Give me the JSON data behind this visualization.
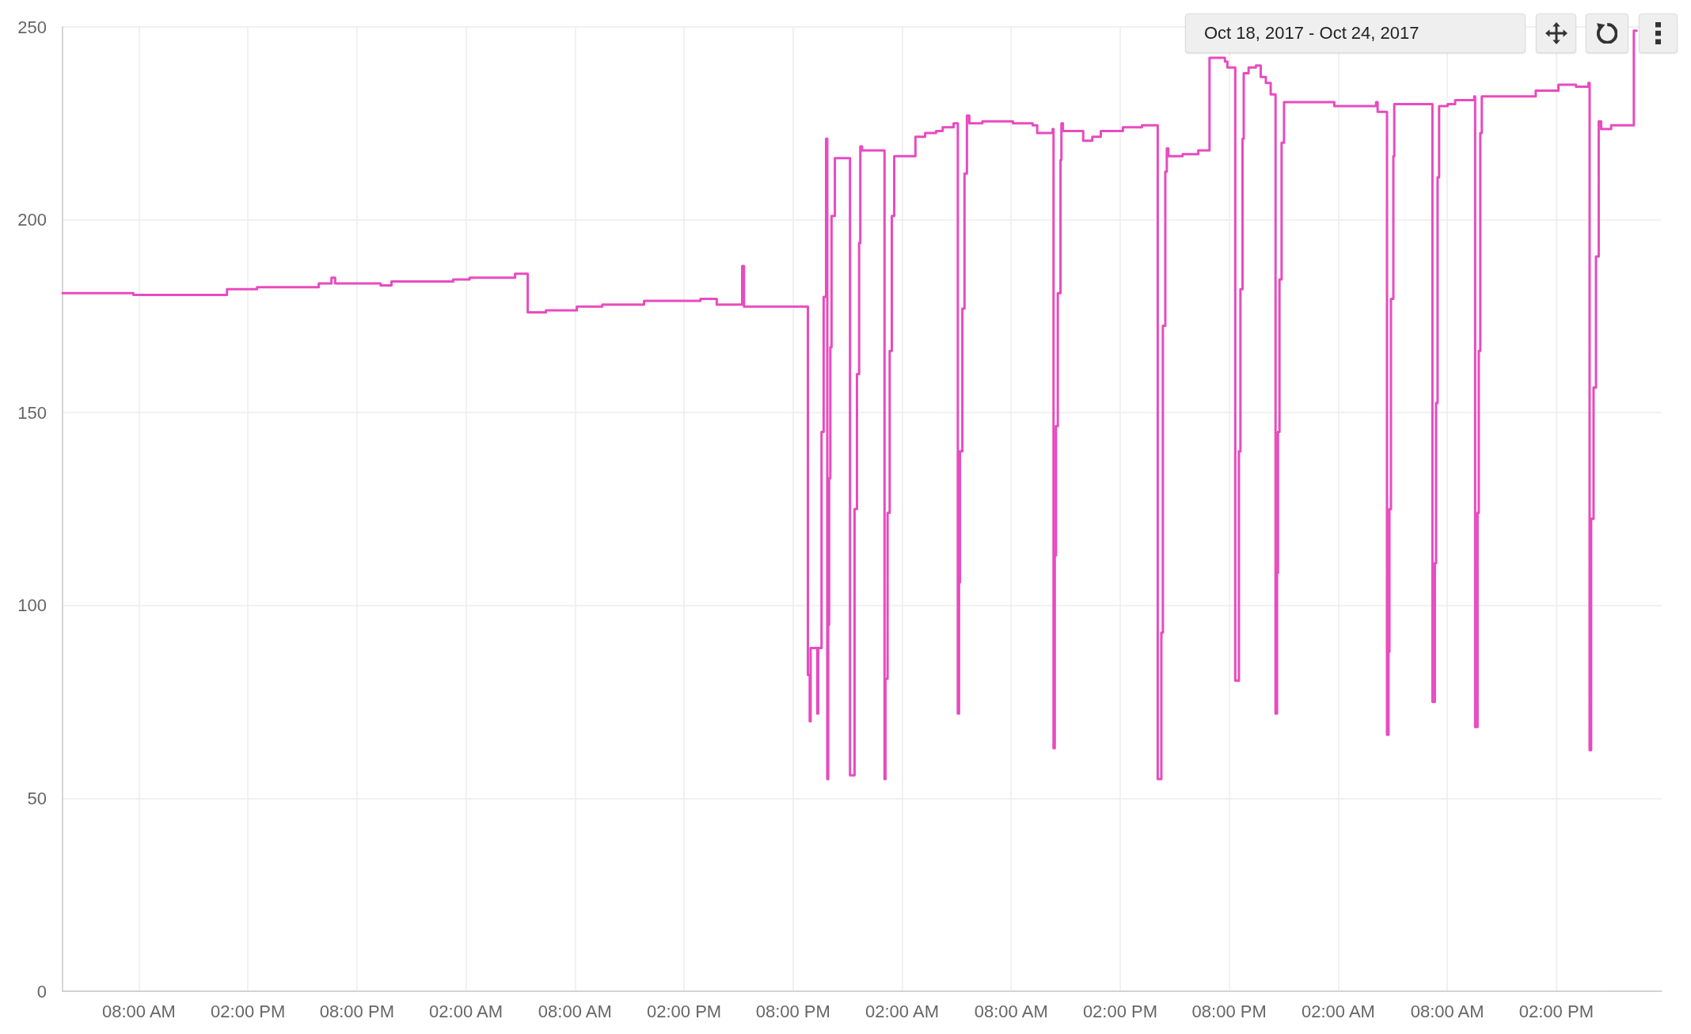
{
  "chart_data": {
    "type": "step",
    "color": "#e84bbf",
    "x": [
      "2017-10-21T03:48",
      "2017-10-21T07:42",
      "2017-10-21T12:18",
      "2017-10-21T12:51",
      "2017-10-21T14:30",
      "2017-10-21T17:54",
      "2017-10-21T18:36",
      "2017-10-21T18:48",
      "2017-10-21T21:18",
      "2017-10-21T21:54",
      "2017-10-22T01:18",
      "2017-10-22T02:12",
      "2017-10-22T04:42",
      "2017-10-22T05:24",
      "2017-10-22T06:24",
      "2017-10-22T08:06",
      "2017-10-22T09:30",
      "2017-10-22T11:48",
      "2017-10-22T14:54",
      "2017-10-22T15:48",
      "2017-10-22T17:12",
      "2017-10-22T17:18",
      "2017-10-22T20:49",
      "2017-10-22T20:55",
      "2017-10-22T20:58",
      "2017-10-22T21:20",
      "2017-10-22T21:23",
      "2017-10-22T21:34",
      "2017-10-22T21:41",
      "2017-10-22T21:49",
      "2017-10-22T21:53",
      "2017-10-22T21:56",
      "2017-10-22T21:59",
      "2017-10-22T22:03",
      "2017-10-22T22:07",
      "2017-10-22T22:18",
      "2017-10-22T23:08",
      "2017-10-22T23:23",
      "2017-10-22T23:31",
      "2017-10-22T23:38",
      "2017-10-22T23:42",
      "2017-10-22T23:48",
      "2017-10-23T01:02",
      "2017-10-23T01:05",
      "2017-10-23T01:12",
      "2017-10-23T01:19",
      "2017-10-23T01:26",
      "2017-10-23T01:34",
      "2017-10-23T02:44",
      "2017-10-23T03:16",
      "2017-10-23T03:52",
      "2017-10-23T04:14",
      "2017-10-23T04:50",
      "2017-10-23T05:04",
      "2017-10-23T05:08",
      "2017-10-23T05:11",
      "2017-10-23T05:19",
      "2017-10-23T05:26",
      "2017-10-23T05:34",
      "2017-10-23T05:42",
      "2017-10-23T06:25",
      "2017-10-23T08:06",
      "2017-10-23T09:11",
      "2017-10-23T09:26",
      "2017-10-23T10:17",
      "2017-10-23T10:20",
      "2017-10-23T10:24",
      "2017-10-23T10:28",
      "2017-10-23T10:34",
      "2017-10-23T10:43",
      "2017-10-23T10:46",
      "2017-10-23T10:51",
      "2017-10-23T11:58",
      "2017-10-23T12:28",
      "2017-10-23T12:56",
      "2017-10-23T14:09",
      "2017-10-23T15:12",
      "2017-10-23T16:04",
      "2017-10-23T16:16",
      "2017-10-23T16:21",
      "2017-10-23T16:29",
      "2017-10-23T16:34",
      "2017-10-23T16:39",
      "2017-10-23T17:26",
      "2017-10-23T18:18",
      "2017-10-23T18:55",
      "2017-10-23T19:46",
      "2017-10-23T19:54",
      "2017-10-23T20:20",
      "2017-10-23T20:32",
      "2017-10-23T20:37",
      "2017-10-23T20:44",
      "2017-10-23T20:48",
      "2017-10-23T21:04",
      "2017-10-23T21:28",
      "2017-10-23T21:44",
      "2017-10-23T22:01",
      "2017-10-23T22:17",
      "2017-10-23T22:33",
      "2017-10-23T22:38",
      "2017-10-23T22:41",
      "2017-10-23T22:46",
      "2017-10-23T22:53",
      "2017-10-23T23:01",
      "2017-10-24T00:10",
      "2017-10-24T01:47",
      "2017-10-24T02:52",
      "2017-10-24T04:05",
      "2017-10-24T04:10",
      "2017-10-24T04:41",
      "2017-10-24T04:46",
      "2017-10-24T04:49",
      "2017-10-24T04:54",
      "2017-10-24T05:02",
      "2017-10-24T05:05",
      "2017-10-24T07:11",
      "2017-10-24T07:19",
      "2017-10-24T07:23",
      "2017-10-24T07:28",
      "2017-10-24T07:33",
      "2017-10-24T08:01",
      "2017-10-24T08:26",
      "2017-10-24T09:29",
      "2017-10-24T09:32",
      "2017-10-24T09:40",
      "2017-10-24T09:44",
      "2017-10-24T09:49",
      "2017-10-24T09:54",
      "2017-10-24T11:28",
      "2017-10-24T12:52",
      "2017-10-24T14:07",
      "2017-10-24T15:05",
      "2017-10-24T15:46",
      "2017-10-24T15:50",
      "2017-10-24T15:55",
      "2017-10-24T16:03",
      "2017-10-24T16:11",
      "2017-10-24T16:20",
      "2017-10-24T16:28",
      "2017-10-24T17:01",
      "2017-10-24T18:16",
      "2017-10-24T18:25"
    ],
    "values": [
      181,
      180.5,
      180.5,
      182,
      182.5,
      183.5,
      185,
      183.5,
      183,
      184,
      184.5,
      185,
      186,
      176,
      176.5,
      177.5,
      178,
      179,
      179.5,
      178,
      188,
      177.5,
      82,
      70,
      89,
      72,
      89,
      145,
      180,
      221,
      55,
      95,
      133,
      167,
      201,
      216,
      56,
      125,
      160,
      194,
      219,
      218,
      55,
      81,
      124,
      166,
      201,
      216.5,
      221.5,
      222.5,
      223,
      224,
      225,
      72,
      106,
      140,
      177,
      212,
      227,
      225,
      225.5,
      225,
      224.5,
      222.5,
      223.5,
      63,
      113,
      146.5,
      181,
      215.5,
      225,
      223,
      220.5,
      221.5,
      223,
      224,
      224.5,
      55,
      93,
      172.5,
      212.5,
      218.5,
      216.5,
      217,
      218,
      242,
      241,
      239.5,
      80.5,
      140,
      182,
      221,
      238,
      239.5,
      240,
      237,
      235.5,
      232.5,
      72,
      108.5,
      145,
      184.5,
      220,
      230.5,
      230.5,
      229.5,
      229.5,
      230.5,
      228,
      66.5,
      88,
      125,
      179.5,
      216.5,
      230,
      75,
      111,
      152.5,
      211,
      229.5,
      230,
      231,
      232,
      68.5,
      124,
      166,
      222.5,
      232,
      232,
      233.5,
      235,
      234.5,
      235.5,
      62.5,
      122.5,
      156.5,
      190.5,
      225.5,
      223.5,
      224.5,
      249,
      249
    ],
    "xlim": [
      "2017-10-21T03:48",
      "2017-10-24T19:48"
    ],
    "xticks": [
      {
        "value": "2017-10-21T08:00",
        "label": "08:00 AM"
      },
      {
        "value": "2017-10-21T14:00",
        "label": "02:00 PM"
      },
      {
        "value": "2017-10-21T20:00",
        "label": "08:00 PM"
      },
      {
        "value": "2017-10-22T02:00",
        "label": "02:00 AM"
      },
      {
        "value": "2017-10-22T08:00",
        "label": "08:00 AM"
      },
      {
        "value": "2017-10-22T14:00",
        "label": "02:00 PM"
      },
      {
        "value": "2017-10-22T20:00",
        "label": "08:00 PM"
      },
      {
        "value": "2017-10-23T02:00",
        "label": "02:00 AM"
      },
      {
        "value": "2017-10-23T08:00",
        "label": "08:00 AM"
      },
      {
        "value": "2017-10-23T14:00",
        "label": "02:00 PM"
      },
      {
        "value": "2017-10-23T20:00",
        "label": "08:00 PM"
      },
      {
        "value": "2017-10-24T02:00",
        "label": "02:00 AM"
      },
      {
        "value": "2017-10-24T08:00",
        "label": "08:00 AM"
      },
      {
        "value": "2017-10-24T14:00",
        "label": "02:00 PM"
      }
    ],
    "ylim": [
      0,
      250
    ],
    "yticks": [
      0,
      50,
      100,
      150,
      200,
      250
    ],
    "grid": true,
    "annotations": [
      "Oct 18, 2017 - Oct 24, 2017"
    ]
  }
}
